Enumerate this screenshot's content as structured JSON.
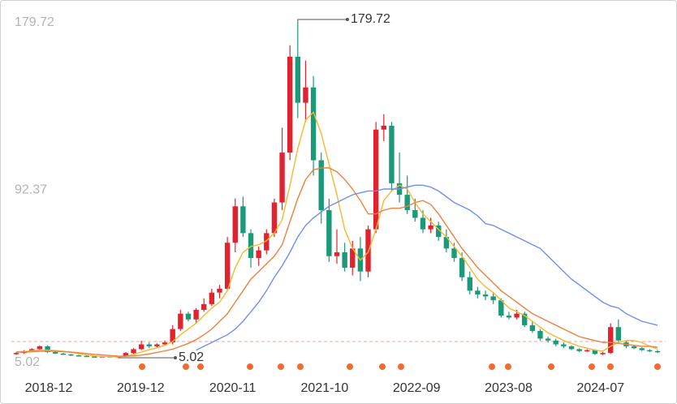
{
  "chart_data": {
    "type": "candlestick",
    "up_color": "#e2232f",
    "down_color": "#1a9a78",
    "ylim": [
      5.02,
      179.72
    ],
    "yticks": [
      5.02,
      92.37,
      179.72
    ],
    "x_labels": [
      "2018-12",
      "2019-12",
      "2020-11",
      "2021-10",
      "2022-09",
      "2023-08",
      "2024-07"
    ],
    "reference_line": 13.5,
    "candles": [
      [
        7,
        8,
        6.5,
        7.5
      ],
      [
        7.5,
        9,
        7,
        8.5
      ],
      [
        8.5,
        10,
        8,
        9.5
      ],
      [
        9.5,
        11.5,
        9,
        11
      ],
      [
        11,
        11.5,
        7.5,
        8
      ],
      [
        8,
        8.5,
        7,
        7.2
      ],
      [
        7.2,
        7.5,
        6.5,
        6.8
      ],
      [
        6.8,
        7,
        6,
        6.3
      ],
      [
        6.3,
        6.6,
        5.8,
        6
      ],
      [
        6,
        6.2,
        5.5,
        5.7
      ],
      [
        5.7,
        6,
        5.3,
        5.5
      ],
      [
        5.5,
        6,
        5.2,
        5.8
      ],
      [
        5.8,
        6,
        5.3,
        5.4
      ],
      [
        5.4,
        6,
        5.02,
        5.8
      ],
      [
        5.8,
        8,
        5.6,
        7.5
      ],
      [
        7.5,
        10,
        7,
        9.5
      ],
      [
        9.5,
        14,
        9,
        12
      ],
      [
        12,
        13,
        10,
        11
      ],
      [
        11,
        12.5,
        10.5,
        12
      ],
      [
        12,
        14,
        11.5,
        13
      ],
      [
        13,
        22,
        12,
        20
      ],
      [
        20,
        30,
        19,
        28
      ],
      [
        28,
        29,
        24,
        25
      ],
      [
        25,
        31,
        23,
        30
      ],
      [
        30,
        36,
        29,
        33
      ],
      [
        33,
        41,
        32,
        39
      ],
      [
        39,
        43,
        36,
        41
      ],
      [
        41,
        68,
        40,
        65
      ],
      [
        65,
        88,
        60,
        84
      ],
      [
        84,
        89,
        68,
        70
      ],
      [
        70,
        72,
        52,
        57
      ],
      [
        57,
        63,
        53,
        61
      ],
      [
        61,
        72,
        59,
        70
      ],
      [
        70,
        88,
        68,
        86
      ],
      [
        86,
        125,
        82,
        112
      ],
      [
        112,
        168,
        108,
        162
      ],
      [
        162,
        179.72,
        130,
        138
      ],
      [
        138,
        160,
        128,
        146
      ],
      [
        146,
        152,
        100,
        108
      ],
      [
        108,
        112,
        75,
        82
      ],
      [
        82,
        88,
        55,
        58
      ],
      [
        58,
        72,
        54,
        60
      ],
      [
        60,
        65,
        50,
        52
      ],
      [
        52,
        66,
        48,
        62
      ],
      [
        62,
        68,
        45,
        50
      ],
      [
        50,
        74,
        47,
        72
      ],
      [
        72,
        128,
        70,
        124
      ],
      [
        124,
        132,
        118,
        126
      ],
      [
        126,
        128,
        92,
        96
      ],
      [
        96,
        112,
        86,
        90
      ],
      [
        90,
        100,
        80,
        82
      ],
      [
        82,
        88,
        76,
        78
      ],
      [
        78,
        82,
        70,
        72
      ],
      [
        72,
        78,
        70,
        74
      ],
      [
        74,
        76,
        66,
        68
      ],
      [
        68,
        72,
        60,
        62
      ],
      [
        62,
        65,
        55,
        57
      ],
      [
        57,
        60,
        45,
        47
      ],
      [
        47,
        50,
        38,
        40
      ],
      [
        40,
        42,
        36,
        38
      ],
      [
        38,
        40,
        35,
        37
      ],
      [
        37,
        39,
        33,
        35
      ],
      [
        35,
        36,
        26,
        27
      ],
      [
        27,
        29,
        25,
        26
      ],
      [
        26,
        30,
        25,
        28
      ],
      [
        28,
        29,
        21,
        22
      ],
      [
        22,
        24,
        18,
        19
      ],
      [
        19,
        20,
        14,
        15
      ],
      [
        15,
        16,
        13,
        14
      ],
      [
        14,
        15,
        11,
        12
      ],
      [
        12,
        13,
        10,
        11
      ],
      [
        11,
        11.5,
        9,
        9.5
      ],
      [
        9.5,
        10,
        8,
        8.5
      ],
      [
        8.5,
        9.5,
        8,
        9
      ],
      [
        9,
        9.5,
        6.5,
        7
      ],
      [
        7,
        8,
        6.5,
        7.5
      ],
      [
        7.5,
        23,
        7,
        21
      ],
      [
        21,
        25,
        13,
        14
      ],
      [
        13,
        14,
        10,
        11
      ],
      [
        11,
        11.5,
        9.5,
        10
      ],
      [
        10,
        10.5,
        8.5,
        9
      ],
      [
        9,
        9.5,
        8,
        8.5
      ],
      [
        8.5,
        9,
        7.5,
        8
      ]
    ],
    "series": [
      {
        "color": "#f5b82e",
        "values": [
          8,
          8.2,
          8.6,
          9,
          9,
          8.8,
          8.4,
          7.9,
          7.1,
          6.5,
          6,
          5.7,
          5.6,
          5.5,
          5.9,
          6.8,
          8,
          9.2,
          10.2,
          11.5,
          13.5,
          17,
          20,
          23,
          27,
          31,
          34,
          40,
          52,
          60,
          63,
          64,
          66,
          70,
          77,
          95,
          114,
          129,
          133,
          122,
          106,
          90,
          72,
          62,
          56,
          60,
          72,
          87,
          92,
          95,
          93,
          86,
          80,
          76,
          72,
          68,
          63,
          58,
          52,
          46,
          42,
          39,
          35,
          31,
          29,
          27,
          24,
          21,
          18,
          16,
          14,
          12.5,
          11,
          10,
          9,
          8.5,
          11,
          13,
          14,
          14,
          13,
          11,
          9.5
        ]
      },
      {
        "color": "#f07f3c",
        "values": [
          8,
          8,
          8.2,
          8.4,
          8.5,
          8.4,
          8.2,
          8,
          7.6,
          7.2,
          6.8,
          6.5,
          6.2,
          5.9,
          5.8,
          6,
          6.4,
          7,
          7.8,
          8.6,
          9.5,
          11,
          12.5,
          14.5,
          17,
          20,
          24,
          28,
          34,
          40,
          46,
          50,
          54,
          58,
          64,
          76,
          88,
          98,
          103,
          104,
          104,
          102,
          98,
          93,
          87,
          80,
          80,
          82,
          83,
          83,
          84,
          86,
          87,
          85,
          80,
          74,
          68,
          62,
          57,
          52,
          48,
          44,
          40,
          37,
          34,
          31,
          28,
          26,
          24,
          22,
          20,
          18,
          16,
          15,
          14,
          13,
          13,
          12.5,
          12,
          11.5,
          11,
          11,
          10.5
        ]
      },
      {
        "color": "#6f8ef0",
        "values": [
          null,
          null,
          null,
          null,
          null,
          null,
          null,
          null,
          null,
          null,
          null,
          null,
          null,
          null,
          null,
          null,
          null,
          null,
          null,
          null,
          null,
          null,
          null,
          9,
          11,
          13,
          15,
          17,
          20,
          24,
          29,
          34,
          40,
          47,
          53,
          60,
          68,
          74,
          78,
          81,
          84,
          86,
          88,
          90,
          91,
          92,
          92,
          93,
          93,
          93,
          94,
          95,
          95,
          94,
          92,
          89,
          86,
          84,
          82,
          79,
          75,
          74,
          72,
          70,
          68,
          66,
          64,
          62,
          58,
          54,
          50,
          46,
          43,
          40,
          37,
          34,
          32,
          31,
          28,
          26,
          24,
          23,
          22
        ]
      }
    ],
    "annotations": [
      {
        "label": "179.72",
        "value": 179.72,
        "candle": 36
      },
      {
        "label": "5.02",
        "value": 5.02,
        "candle": 13
      }
    ]
  }
}
